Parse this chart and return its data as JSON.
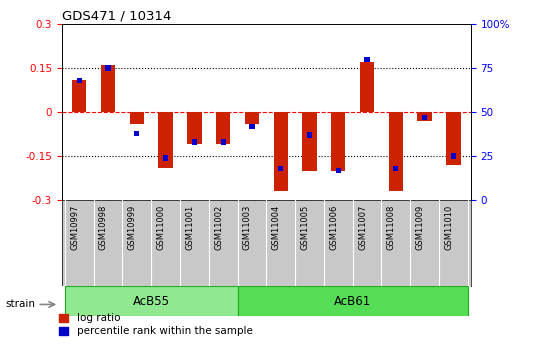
{
  "title": "GDS471 / 10314",
  "samples": [
    "GSM10997",
    "GSM10998",
    "GSM10999",
    "GSM11000",
    "GSM11001",
    "GSM11002",
    "GSM11003",
    "GSM11004",
    "GSM11005",
    "GSM11006",
    "GSM11007",
    "GSM11008",
    "GSM11009",
    "GSM11010"
  ],
  "log_ratio": [
    0.11,
    0.16,
    -0.04,
    -0.19,
    -0.11,
    -0.11,
    -0.04,
    -0.27,
    -0.2,
    -0.2,
    0.17,
    -0.27,
    -0.03,
    -0.18
  ],
  "percentile_rank": [
    68,
    75,
    38,
    24,
    33,
    33,
    42,
    18,
    37,
    17,
    80,
    18,
    47,
    25
  ],
  "groups": [
    {
      "label": "AcB55",
      "start": 0,
      "end": 6
    },
    {
      "label": "AcB61",
      "start": 6,
      "end": 14
    }
  ],
  "ylim": [
    -0.3,
    0.3
  ],
  "yticks": [
    -0.3,
    -0.15,
    0.0,
    0.15,
    0.3
  ],
  "ytick_labels_left": [
    "-0.3",
    "-0.15",
    "0",
    "0.15",
    "0.3"
  ],
  "right_ytick_labels": [
    "0",
    "25",
    "50",
    "75",
    "100%"
  ],
  "bar_color_red": "#cc2200",
  "bar_color_blue": "#0000cc",
  "bg_color": "#ffffff",
  "tick_label_bg": "#c8c8c8",
  "group_color_1": "#90e890",
  "group_color_2": "#55dd55",
  "group_border_color": "#22aa22",
  "strain_label": "strain",
  "legend1": "log ratio",
  "legend2": "percentile rank within the sample",
  "bar_width": 0.5,
  "blue_bar_width": 0.18,
  "blue_bar_height": 0.018
}
